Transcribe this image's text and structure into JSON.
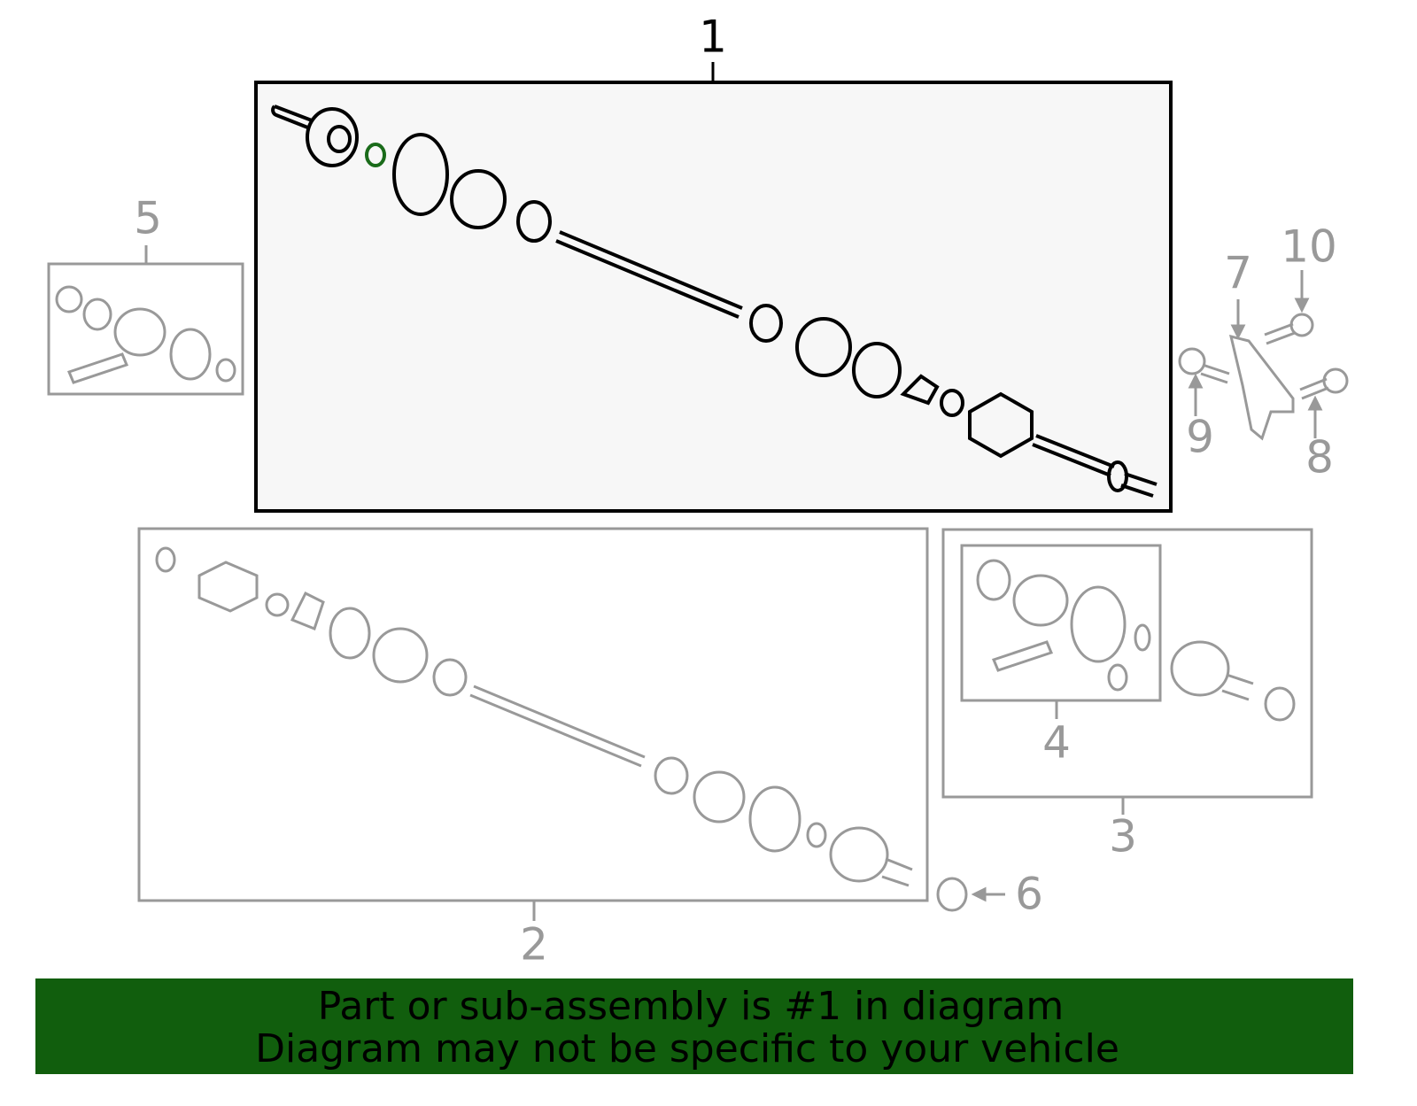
{
  "callouts": [
    {
      "label": "1"
    },
    {
      "label": "2"
    },
    {
      "label": "3"
    },
    {
      "label": "4"
    },
    {
      "label": "5"
    },
    {
      "label": "6"
    },
    {
      "label": "7"
    },
    {
      "label": "8"
    },
    {
      "label": "9"
    },
    {
      "label": "10"
    }
  ],
  "banner": {
    "lines": [
      "Part or sub-assembly is #1 in diagram",
      "Diagram may not be specific to your vehicle"
    ]
  }
}
